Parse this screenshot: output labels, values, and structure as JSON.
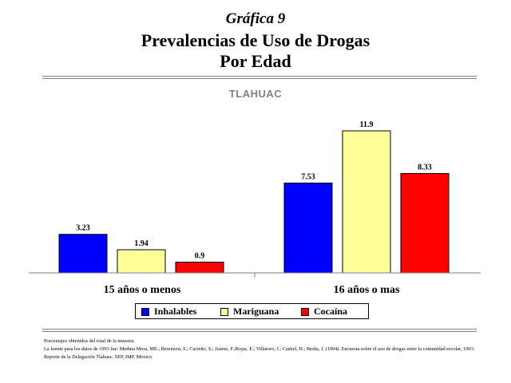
{
  "header": {
    "kicker": "Gráfica 9",
    "title_line1": "Prevalencias de Uso de Drogas",
    "title_line2": "Por Edad",
    "subtitle": "TLAHUAC"
  },
  "chart_data": {
    "type": "bar",
    "categories": [
      "15 años o menos",
      "16 años o mas"
    ],
    "series": [
      {
        "name": "Inhalables",
        "values": [
          3.23,
          7.53
        ],
        "color": "#0000ff"
      },
      {
        "name": "Mariguana",
        "values": [
          1.94,
          11.9
        ],
        "color": "#ffff99"
      },
      {
        "name": "Cocaína",
        "values": [
          0.9,
          8.33
        ],
        "color": "#ff0000"
      }
    ],
    "value_labels": [
      [
        "3.23",
        "7.53"
      ],
      [
        "1.94",
        "11.9"
      ],
      [
        "0.9",
        "8.33"
      ]
    ],
    "title": "TLAHUAC",
    "ylim": [
      0,
      13
    ],
    "grid": false,
    "legend": "bottom"
  },
  "notes": {
    "line1": "Porcentajes obtenidos del total de la muestra.",
    "line2": "La fuente para los datos de 1993 fue: Medina Mora, ME.; Berenzon, S.; Carreño, S.; Juárez, F.;Rojas, E.; Villatoro, J.; Castiel, H.; Breña, J. (1994). Encuesta sobre el uso de drogas entre la comunidad escolar, 1993; Reporte de la Delegación Tlahuac. SEP, IMP, México."
  }
}
